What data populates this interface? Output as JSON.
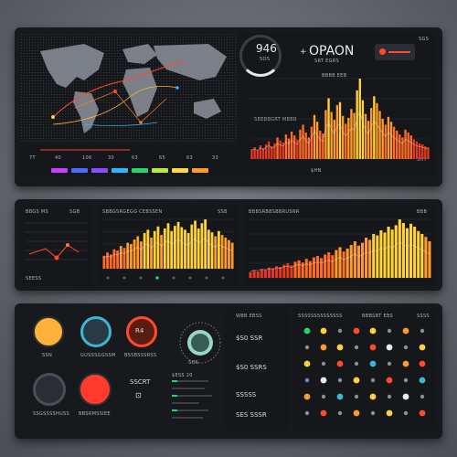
{
  "panel1": {
    "map_label": "",
    "map_numbers": [
      "7T",
      "40",
      "106",
      "30",
      "63",
      "65",
      "63",
      "33"
    ],
    "swatch_colors": [
      "#c640ff",
      "#4c6cff",
      "#8a4cff",
      "#2fb6ff",
      "#27d46b",
      "#b8e83a",
      "#ffd93a",
      "#ff9b2a"
    ],
    "stat_value": "946",
    "stat_caption": "SOS",
    "title": "OPAON",
    "subtitle": "SRT EGRS",
    "chart_sub": "BBBB EEB",
    "chart_tag": "SBEBBGRT MBBB",
    "chart_right_label": "SHT",
    "chart_bottom_label": "$HN",
    "badge": "SGS"
  },
  "panel2": {
    "left_title": "BBGS MS",
    "left_tag": "SGB",
    "left_footer": "SEESS",
    "mid_title": "SBBGSRGEGG CEBSSEN",
    "mid_tag": "SSB",
    "right_title": "BBBSRBBSBBRUSNR",
    "right_tag": "BBB"
  },
  "panel3": {
    "gauge_labels": [
      "SSN",
      "GUSSSGGSSM",
      "BSSBSSSRSS",
      "",
      "SSGSSSSHUSS",
      "BBSRMSSIEE"
    ],
    "gauge_values": [
      "",
      "",
      "R4",
      "",
      "",
      ""
    ],
    "big_dial_value": "",
    "big_dial_caption": "SOS",
    "section_title": "SSCRT",
    "list_title": "WBB EBSS",
    "list_values": [
      "$S0 SSR",
      "$S0 SSRS",
      "SSSSS",
      "SES SSSR"
    ],
    "list_caption": "$ESS 20",
    "right_title": "SSSSSSSSSSSSSS",
    "right_sub": "BBBSBT EBS",
    "right_tag": "SSSS"
  },
  "chart_data": [
    {
      "type": "bar",
      "title": "",
      "values": [
        10,
        12,
        9,
        14,
        11,
        15,
        18,
        13,
        16,
        22,
        19,
        17,
        25,
        21,
        28,
        24,
        20,
        30,
        35,
        27,
        22,
        33,
        45,
        38,
        29,
        26,
        50,
        62,
        48,
        40,
        55,
        58,
        44,
        36,
        42,
        51,
        47,
        70,
        82,
        60,
        46,
        39,
        52,
        64,
        57,
        49,
        41,
        35,
        43,
        38,
        33,
        29,
        25,
        22,
        30,
        27,
        24,
        20,
        18,
        16,
        15,
        13,
        12
      ]
    },
    {
      "type": "bar",
      "title": "",
      "values": [
        20,
        25,
        22,
        30,
        28,
        35,
        32,
        40,
        38,
        45,
        50,
        42,
        55,
        60,
        48,
        58,
        65,
        52,
        62,
        70,
        58,
        66,
        72,
        64,
        60,
        55,
        68,
        74,
        62,
        70,
        76,
        60,
        56,
        50,
        58,
        52,
        48,
        44,
        40
      ]
    },
    {
      "type": "bar",
      "title": "",
      "values": [
        8,
        10,
        9,
        12,
        11,
        14,
        13,
        16,
        15,
        18,
        20,
        17,
        22,
        24,
        21,
        26,
        23,
        28,
        30,
        27,
        32,
        35,
        31,
        38,
        42,
        36,
        40,
        45,
        50,
        44,
        48,
        55,
        52,
        60,
        58,
        65,
        62,
        70,
        66,
        72,
        80,
        75,
        68,
        74,
        70,
        64,
        60,
        56,
        50
      ]
    }
  ]
}
